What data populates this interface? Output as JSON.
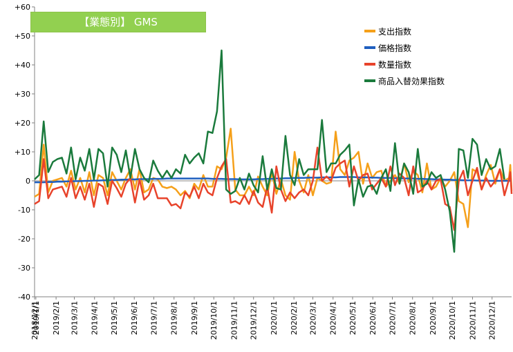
{
  "chart_data": {
    "type": "line",
    "title": "【業態別】 GMS",
    "ylim": [
      -40,
      60
    ],
    "yticks": [
      -40,
      -30,
      -20,
      -10,
      0,
      10,
      20,
      30,
      40,
      50,
      60
    ],
    "ytick_labels": [
      "-40",
      "-30",
      "-20",
      "-10",
      "0",
      "+10",
      "+20",
      "+30",
      "+40",
      "+50",
      "+60"
    ],
    "x_tick_labels": [
      "2018/12/1",
      "2019/1/1",
      "2019/2/1",
      "2019/3/1",
      "2019/4/1",
      "2019/5/1",
      "2019/6/1",
      "2019/7/1",
      "2019/8/1",
      "2019/9/1",
      "2019/10/1",
      "2019/11/1",
      "2019/12/1",
      "2020/1/1",
      "2020/2/1",
      "2020/3/1",
      "2020/4/1",
      "2020/5/1",
      "2020/6/1",
      "2020/7/1",
      "2020/8/1",
      "2020/9/1",
      "2020/10/1",
      "2020/11/1",
      "2020/12/1"
    ],
    "x_start": "2018-12-30",
    "x_end": "2020-12-31",
    "legend_position": "top-right",
    "grid": false,
    "series": [
      {
        "name": "支出指数",
        "color": "#f5a01a",
        "values": [
          -5.5,
          -4.5,
          12.5,
          -4.0,
          0.0,
          0.5,
          1.0,
          -2.0,
          3.5,
          -3.0,
          1.0,
          -4.0,
          3.0,
          -5.0,
          2.0,
          1.0,
          -5.0,
          3.0,
          0.0,
          -3.0,
          1.0,
          4.0,
          -3.0,
          4.0,
          -4.0,
          -3.0,
          1.0,
          0.5,
          -2.0,
          -2.5,
          -2.0,
          -3.0,
          -5.0,
          -3.5,
          -6.0,
          -1.0,
          -3.0,
          2.0,
          -2.0,
          -2.0,
          5.0,
          4.0,
          8.0,
          18.0,
          -3.0,
          -5.0,
          -5.0,
          -2.0,
          -5.0,
          1.5,
          -2.0,
          -5.0,
          3.0,
          -4.5,
          0.5,
          -5.0,
          -6.5,
          10.0,
          0.0,
          -4.0,
          2.0,
          -5.0,
          1.0,
          0.0,
          -1.0,
          -0.5,
          17.0,
          4.0,
          2.0,
          7.0,
          8.0,
          10.0,
          -1.0,
          6.0,
          1.0,
          3.0,
          3.5,
          -2.0,
          0.0,
          2.0,
          -1.0,
          6.0,
          -0.5,
          3.5,
          2.0,
          -4.0,
          6.0,
          -3.0,
          -2.0,
          1.0,
          -2.0,
          0.0,
          3.0,
          -7.0,
          -8.0,
          -16.0,
          4.0,
          3.0,
          -3.0,
          2.0,
          5.5,
          -1.0,
          4.0,
          0.0,
          1.0,
          5.5,
          -3.5
        ],
        "x_dates": [
          "2018-12-30",
          "2019-01-06",
          "2019-01-13",
          "2019-01-20",
          "2019-01-27",
          "2019-02-03",
          "2019-02-10",
          "2019-02-17",
          "2019-02-24",
          "2019-03-03",
          "2019-03-10",
          "2019-03-17",
          "2019-03-24",
          "2019-03-31",
          "2019-04-07",
          "2019-04-14",
          "2019-04-21",
          "2019-04-28",
          "2019-05-05",
          "2019-05-12",
          "2019-05-19",
          "2019-05-26",
          "2019-06-02",
          "2019-06-09",
          "2019-06-16",
          "2019-06-23",
          "2019-06-30",
          "2019-07-07",
          "2019-07-14",
          "2019-07-21",
          "2019-07-28",
          "2019-08-04",
          "2019-08-11",
          "2019-08-18",
          "2019-08-25",
          "2019-09-01",
          "2019-09-08",
          "2019-09-15",
          "2019-09-22",
          "2019-09-29",
          "2019-10-06",
          "2019-10-13",
          "2019-10-20",
          "2019-10-27",
          "2019-11-03",
          "2019-11-10",
          "2019-11-17",
          "2019-11-24",
          "2019-12-01",
          "2019-12-08",
          "2019-12-15",
          "2019-12-22",
          "2019-12-29",
          "2020-01-05",
          "2020-01-12",
          "2020-01-19",
          "2020-01-26",
          "2020-02-02",
          "2020-02-09",
          "2020-02-16",
          "2020-02-23",
          "2020-03-01",
          "2020-03-08",
          "2020-03-15",
          "2020-03-22",
          "2020-03-29",
          "2020-04-05",
          "2020-04-12",
          "2020-04-19",
          "2020-04-26",
          "2020-05-03",
          "2020-05-10",
          "2020-05-17",
          "2020-05-24",
          "2020-05-31",
          "2020-06-07",
          "2020-06-14",
          "2020-06-21",
          "2020-06-28",
          "2020-07-05",
          "2020-07-12",
          "2020-07-19",
          "2020-07-26",
          "2020-08-02",
          "2020-08-09",
          "2020-08-16",
          "2020-08-23",
          "2020-08-30",
          "2020-09-06",
          "2020-09-13",
          "2020-09-20",
          "2020-09-27",
          "2020-10-04",
          "2020-10-11",
          "2020-10-18",
          "2020-10-25",
          "2020-11-01",
          "2020-11-08",
          "2020-11-15",
          "2020-11-22",
          "2020-11-29",
          "2020-12-06",
          "2020-12-13",
          "2020-12-20",
          "2020-12-27",
          "2020-12-29",
          "2020-12-31"
        ]
      },
      {
        "name": "価格指数",
        "color": "#1f5fbf",
        "values": [
          -0.5,
          -0.5,
          -0.5,
          -0.4,
          -0.4,
          -0.3,
          -0.3,
          -0.2,
          -0.2,
          -0.1,
          -0.1,
          0.0,
          0.0,
          0.1,
          0.1,
          0.2,
          0.2,
          0.3,
          0.3,
          0.4,
          0.4,
          0.5,
          0.5,
          0.6,
          0.6,
          0.6,
          0.7,
          0.7,
          0.7,
          0.8,
          0.8,
          0.8,
          0.8,
          0.8,
          0.8,
          0.8,
          0.8,
          0.8,
          0.8,
          0.7,
          0.7,
          0.7,
          0.6,
          0.6,
          0.6,
          0.5,
          0.5,
          0.5,
          0.5,
          0.6,
          0.6,
          0.7,
          0.7,
          0.8,
          0.8,
          0.9,
          0.9,
          1.0,
          1.0,
          1.0,
          1.1,
          1.1,
          1.1,
          1.2,
          1.2,
          1.2,
          1.2,
          1.3,
          1.3,
          1.3,
          1.3,
          1.2,
          1.2,
          1.2,
          1.1,
          1.1,
          1.0,
          1.0,
          1.0,
          0.9,
          0.9,
          0.8,
          0.8,
          0.8,
          0.7,
          0.7,
          0.6,
          0.6,
          0.5,
          0.5,
          0.4,
          0.4,
          0.3,
          0.3,
          0.2,
          0.2,
          0.2,
          0.1,
          0.1,
          0.1,
          0.0,
          0.0,
          0.0,
          0.0,
          0.0,
          0.0,
          0.0
        ],
        "x_dates": [
          "2018-12-30",
          "2019-01-06",
          "2019-01-13",
          "2019-01-20",
          "2019-01-27",
          "2019-02-03",
          "2019-02-10",
          "2019-02-17",
          "2019-02-24",
          "2019-03-03",
          "2019-03-10",
          "2019-03-17",
          "2019-03-24",
          "2019-03-31",
          "2019-04-07",
          "2019-04-14",
          "2019-04-21",
          "2019-04-28",
          "2019-05-05",
          "2019-05-12",
          "2019-05-19",
          "2019-05-26",
          "2019-06-02",
          "2019-06-09",
          "2019-06-16",
          "2019-06-23",
          "2019-06-30",
          "2019-07-07",
          "2019-07-14",
          "2019-07-21",
          "2019-07-28",
          "2019-08-04",
          "2019-08-11",
          "2019-08-18",
          "2019-08-25",
          "2019-09-01",
          "2019-09-08",
          "2019-09-15",
          "2019-09-22",
          "2019-09-29",
          "2019-10-06",
          "2019-10-13",
          "2019-10-20",
          "2019-10-27",
          "2019-11-03",
          "2019-11-10",
          "2019-11-17",
          "2019-11-24",
          "2019-12-01",
          "2019-12-08",
          "2019-12-15",
          "2019-12-22",
          "2019-12-29",
          "2020-01-05",
          "2020-01-12",
          "2020-01-19",
          "2020-01-26",
          "2020-02-02",
          "2020-02-09",
          "2020-02-16",
          "2020-02-23",
          "2020-03-01",
          "2020-03-08",
          "2020-03-15",
          "2020-03-22",
          "2020-03-29",
          "2020-04-05",
          "2020-04-12",
          "2020-04-19",
          "2020-04-26",
          "2020-05-03",
          "2020-05-10",
          "2020-05-17",
          "2020-05-24",
          "2020-05-31",
          "2020-06-07",
          "2020-06-14",
          "2020-06-21",
          "2020-06-28",
          "2020-07-05",
          "2020-07-12",
          "2020-07-19",
          "2020-07-26",
          "2020-08-02",
          "2020-08-09",
          "2020-08-16",
          "2020-08-23",
          "2020-08-30",
          "2020-09-06",
          "2020-09-13",
          "2020-09-20",
          "2020-09-27",
          "2020-10-04",
          "2020-10-11",
          "2020-10-18",
          "2020-10-25",
          "2020-11-01",
          "2020-11-08",
          "2020-11-15",
          "2020-11-22",
          "2020-11-29",
          "2020-12-06",
          "2020-12-13",
          "2020-12-20",
          "2020-12-27",
          "2020-12-29",
          "2020-12-31"
        ]
      },
      {
        "name": "数量指数",
        "color": "#e8432b",
        "values": [
          -8.0,
          -7.0,
          7.5,
          -6.0,
          -3.0,
          -2.5,
          -2.0,
          -5.5,
          1.0,
          -6.0,
          -2.0,
          -6.5,
          -1.0,
          -9.0,
          -1.0,
          -2.0,
          -8.0,
          0.0,
          -2.5,
          -5.5,
          -1.0,
          1.0,
          -7.5,
          0.5,
          -6.5,
          -5.0,
          -1.0,
          -6.0,
          -6.0,
          -6.0,
          -8.5,
          -8.0,
          -9.5,
          -4.0,
          -5.5,
          -2.0,
          -6.0,
          -1.0,
          -4.0,
          -5.0,
          1.0,
          5.0,
          7.5,
          -7.5,
          -7.0,
          -8.0,
          -5.0,
          -8.0,
          -3.5,
          -7.5,
          -9.0,
          -2.0,
          -11.0,
          5.0,
          -3.0,
          -7.0,
          -4.0,
          -6.0,
          -4.0,
          -3.0,
          -5.0,
          0.0,
          11.5,
          0.0,
          1.5,
          0.0,
          4.5,
          6.0,
          7.0,
          -2.0,
          5.0,
          0.0,
          2.0,
          2.5,
          -3.0,
          -1.0,
          1.0,
          -2.0,
          5.0,
          -1.5,
          2.5,
          1.0,
          -5.0,
          5.0,
          -4.0,
          -3.0,
          0.0,
          -3.0,
          0.0,
          0.5,
          -8.0,
          -9.0,
          -17.0,
          0.0,
          3.5,
          -5.0,
          0.0,
          4.5,
          -3.0,
          1.0,
          -2.0,
          0.0,
          4.0,
          -5.0,
          0.5,
          3.0,
          -4.5
        ],
        "x_dates": [
          "2018-12-30",
          "2019-01-06",
          "2019-01-13",
          "2019-01-20",
          "2019-01-27",
          "2019-02-03",
          "2019-02-10",
          "2019-02-17",
          "2019-02-24",
          "2019-03-03",
          "2019-03-10",
          "2019-03-17",
          "2019-03-24",
          "2019-03-31",
          "2019-04-07",
          "2019-04-14",
          "2019-04-21",
          "2019-04-28",
          "2019-05-05",
          "2019-05-12",
          "2019-05-19",
          "2019-05-26",
          "2019-06-02",
          "2019-06-09",
          "2019-06-16",
          "2019-06-23",
          "2019-06-30",
          "2019-07-07",
          "2019-07-14",
          "2019-07-21",
          "2019-07-28",
          "2019-08-04",
          "2019-08-11",
          "2019-08-18",
          "2019-08-25",
          "2019-09-01",
          "2019-09-08",
          "2019-09-15",
          "2019-09-22",
          "2019-09-29",
          "2019-10-06",
          "2019-10-13",
          "2019-10-20",
          "2019-10-27",
          "2019-11-03",
          "2019-11-10",
          "2019-11-17",
          "2019-11-24",
          "2019-12-01",
          "2019-12-08",
          "2019-12-15",
          "2019-12-22",
          "2019-12-29",
          "2020-01-05",
          "2020-01-12",
          "2020-01-19",
          "2020-01-26",
          "2020-02-02",
          "2020-02-09",
          "2020-02-16",
          "2020-02-23",
          "2020-03-01",
          "2020-03-08",
          "2020-03-15",
          "2020-03-22",
          "2020-03-29",
          "2020-04-05",
          "2020-04-12",
          "2020-04-19",
          "2020-04-26",
          "2020-05-03",
          "2020-05-10",
          "2020-05-17",
          "2020-05-24",
          "2020-05-31",
          "2020-06-07",
          "2020-06-14",
          "2020-06-21",
          "2020-06-28",
          "2020-07-05",
          "2020-07-12",
          "2020-07-19",
          "2020-07-26",
          "2020-08-02",
          "2020-08-09",
          "2020-08-16",
          "2020-08-23",
          "2020-08-30",
          "2020-09-06",
          "2020-09-13",
          "2020-09-20",
          "2020-09-27",
          "2020-10-04",
          "2020-10-11",
          "2020-10-18",
          "2020-10-25",
          "2020-11-01",
          "2020-11-08",
          "2020-11-15",
          "2020-11-22",
          "2020-11-29",
          "2020-12-06",
          "2020-12-13",
          "2020-12-20",
          "2020-12-27",
          "2020-12-29",
          "2020-12-31"
        ]
      },
      {
        "name": "商品入替効果指数",
        "color": "#1a7a3c",
        "values": [
          0.5,
          2.0,
          20.5,
          3.0,
          6.5,
          7.5,
          8.0,
          2.5,
          11.5,
          0.5,
          8.0,
          3.5,
          11.0,
          0.5,
          11.0,
          9.5,
          -2.0,
          11.5,
          9.0,
          3.0,
          10.5,
          1.0,
          11.0,
          4.0,
          1.0,
          -0.5,
          7.0,
          3.5,
          1.0,
          3.5,
          1.0,
          4.0,
          2.5,
          9.0,
          6.0,
          8.0,
          9.5,
          6.0,
          17.0,
          16.5,
          24.0,
          45.0,
          -3.0,
          -4.5,
          -3.5,
          1.0,
          -3.0,
          2.5,
          -1.5,
          -4.0,
          8.5,
          -3.0,
          4.0,
          -2.5,
          -3.0,
          15.5,
          2.0,
          -1.5,
          7.5,
          2.0,
          4.0,
          4.0,
          4.0,
          21.0,
          3.0,
          6.0,
          6.0,
          9.0,
          10.5,
          12.5,
          -8.5,
          0.5,
          -5.5,
          -2.0,
          -1.5,
          -4.5,
          1.0,
          4.0,
          -3.5,
          13.0,
          -1.0,
          6.0,
          3.0,
          -4.5,
          11.0,
          -2.0,
          -1.0,
          3.0,
          1.0,
          2.0,
          -3.0,
          -10.5,
          -24.5,
          11.0,
          10.5,
          1.0,
          14.5,
          12.5,
          2.0,
          7.5,
          4.0,
          5.0,
          11.0,
          0.5
        ],
        "x_dates": [
          "2018-12-30",
          "2019-01-06",
          "2019-01-13",
          "2019-01-20",
          "2019-01-27",
          "2019-02-03",
          "2019-02-10",
          "2019-02-17",
          "2019-02-24",
          "2019-03-03",
          "2019-03-10",
          "2019-03-17",
          "2019-03-24",
          "2019-03-31",
          "2019-04-07",
          "2019-04-14",
          "2019-04-21",
          "2019-04-28",
          "2019-05-05",
          "2019-05-12",
          "2019-05-19",
          "2019-05-26",
          "2019-06-02",
          "2019-06-09",
          "2019-06-16",
          "2019-06-23",
          "2019-06-30",
          "2019-07-07",
          "2019-07-14",
          "2019-07-21",
          "2019-07-28",
          "2019-08-04",
          "2019-08-11",
          "2019-08-18",
          "2019-08-25",
          "2019-09-01",
          "2019-09-08",
          "2019-09-15",
          "2019-09-22",
          "2019-09-29",
          "2019-10-06",
          "2019-10-13",
          "2019-10-20",
          "2019-10-27",
          "2019-11-03",
          "2019-11-10",
          "2019-11-17",
          "2019-11-24",
          "2019-12-01",
          "2019-12-08",
          "2019-12-15",
          "2019-12-22",
          "2019-12-29",
          "2020-01-05",
          "2020-01-12",
          "2020-01-19",
          "2020-01-26",
          "2020-02-02",
          "2020-02-09",
          "2020-02-16",
          "2020-02-23",
          "2020-03-01",
          "2020-03-08",
          "2020-03-15",
          "2020-03-22",
          "2020-03-29",
          "2020-04-05",
          "2020-04-12",
          "2020-04-19",
          "2020-04-26",
          "2020-05-03",
          "2020-05-10",
          "2020-05-17",
          "2020-05-24",
          "2020-05-31",
          "2020-06-07",
          "2020-06-14",
          "2020-06-21",
          "2020-06-28",
          "2020-07-05",
          "2020-07-12",
          "2020-07-19",
          "2020-07-26",
          "2020-08-02",
          "2020-08-09",
          "2020-08-16",
          "2020-08-23",
          "2020-08-30",
          "2020-09-06",
          "2020-09-13",
          "2020-09-20",
          "2020-09-27",
          "2020-10-04",
          "2020-10-11",
          "2020-10-18",
          "2020-10-25",
          "2020-11-01",
          "2020-11-08",
          "2020-11-15",
          "2020-11-22",
          "2020-11-29",
          "2020-12-06",
          "2020-12-13",
          "2020-12-20"
        ]
      }
    ]
  }
}
